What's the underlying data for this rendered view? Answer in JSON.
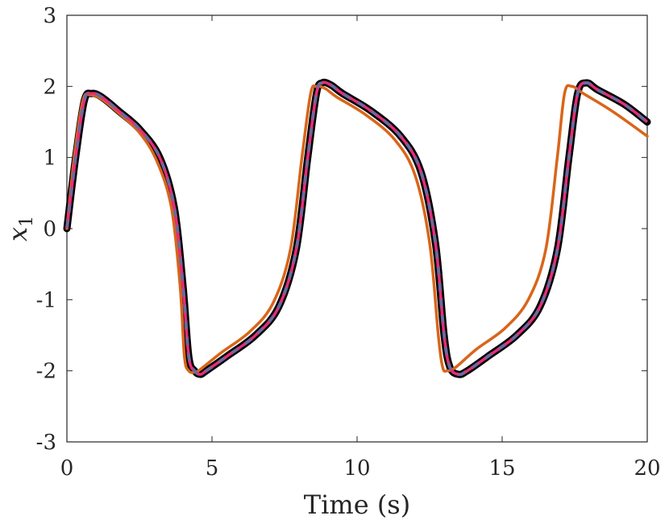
{
  "chart_data": {
    "type": "line",
    "title": "",
    "xlabel": "Time (s)",
    "ylabel": {
      "main": "x",
      "sub": "1"
    },
    "xlim": [
      0,
      20
    ],
    "ylim": [
      -3,
      3
    ],
    "xticks": [
      "0",
      "5",
      "10",
      "15",
      "20"
    ],
    "yticks": [
      "3",
      "2",
      "1",
      "0",
      "-1",
      "-2",
      "-3"
    ],
    "grid": false,
    "legend": "none",
    "series": [
      {
        "color": "#000000",
        "style": "solid-thick",
        "x": [
          0,
          0.3,
          0.6,
          0.85,
          1.2,
          1.8,
          2.5,
          3.2,
          3.7,
          4.0,
          4.2,
          4.4,
          4.6,
          4.8,
          5.5,
          6.5,
          7.3,
          7.9,
          8.3,
          8.6,
          8.8,
          9.1,
          9.5,
          10.5,
          11.5,
          12.2,
          12.7,
          13.0,
          13.2,
          13.5,
          13.8,
          14.5,
          15.5,
          16.3,
          16.9,
          17.3,
          17.6,
          17.9,
          18.3,
          19.2,
          20.0
        ],
        "y": [
          0,
          1.0,
          1.8,
          1.9,
          1.85,
          1.65,
          1.4,
          1.0,
          0.3,
          -0.8,
          -1.8,
          -2.0,
          -2.05,
          -2.0,
          -1.8,
          -1.5,
          -1.1,
          -0.3,
          1.0,
          1.9,
          2.05,
          2.02,
          1.9,
          1.65,
          1.3,
          0.8,
          -0.2,
          -1.5,
          -1.95,
          -2.05,
          -2.0,
          -1.8,
          -1.5,
          -1.1,
          -0.3,
          1.0,
          1.9,
          2.05,
          1.95,
          1.75,
          1.5
        ]
      },
      {
        "color": "#6a6aa0",
        "style": "dashed",
        "x": [
          0,
          0.3,
          0.6,
          0.85,
          1.2,
          1.8,
          2.5,
          3.2,
          3.7,
          4.0,
          4.2,
          4.4,
          4.6,
          4.8,
          5.5,
          6.5,
          7.3,
          7.9,
          8.3,
          8.6,
          8.8,
          9.1,
          9.5,
          10.5,
          11.5,
          12.2,
          12.7,
          13.0,
          13.2,
          13.5,
          13.8,
          14.5,
          15.5,
          16.3,
          16.9,
          17.3,
          17.6,
          17.9,
          18.3,
          19.2,
          20.0
        ],
        "y": [
          0,
          1.0,
          1.8,
          1.9,
          1.85,
          1.65,
          1.4,
          1.0,
          0.3,
          -0.8,
          -1.8,
          -2.0,
          -2.05,
          -2.0,
          -1.8,
          -1.5,
          -1.1,
          -0.3,
          1.0,
          1.9,
          2.05,
          2.02,
          1.9,
          1.65,
          1.3,
          0.8,
          -0.2,
          -1.5,
          -1.95,
          -2.05,
          -2.0,
          -1.8,
          -1.5,
          -1.1,
          -0.3,
          1.0,
          1.9,
          2.05,
          1.95,
          1.75,
          1.5
        ]
      },
      {
        "color": "#e0307a",
        "style": "dashed-offset",
        "x": [
          0,
          0.3,
          0.6,
          0.85,
          1.2,
          1.8,
          2.5,
          3.2,
          3.7,
          4.0,
          4.2,
          4.4,
          4.6,
          4.8,
          5.5,
          6.5,
          7.3,
          7.9,
          8.3,
          8.6,
          8.8,
          9.1,
          9.5,
          10.5,
          11.5,
          12.2,
          12.7,
          13.0,
          13.2,
          13.5,
          13.8,
          14.5,
          15.5,
          16.3,
          16.9,
          17.3,
          17.6,
          17.9,
          18.3,
          19.2,
          20.0
        ],
        "y": [
          0,
          1.0,
          1.8,
          1.9,
          1.85,
          1.65,
          1.4,
          1.0,
          0.3,
          -0.8,
          -1.8,
          -2.0,
          -2.05,
          -2.0,
          -1.8,
          -1.5,
          -1.1,
          -0.3,
          1.0,
          1.9,
          2.05,
          2.02,
          1.9,
          1.65,
          1.3,
          0.8,
          -0.2,
          -1.5,
          -1.95,
          -2.05,
          -2.0,
          -1.8,
          -1.5,
          -1.1,
          -0.3,
          1.0,
          1.9,
          2.05,
          1.95,
          1.75,
          1.5
        ]
      },
      {
        "color": "#d9651a",
        "style": "solid",
        "x": [
          0,
          0.25,
          0.55,
          0.8,
          1.2,
          1.8,
          2.5,
          3.1,
          3.6,
          3.9,
          4.05,
          4.2,
          4.4,
          4.6,
          5.3,
          6.3,
          7.1,
          7.7,
          8.1,
          8.4,
          8.6,
          8.9,
          9.3,
          10.3,
          11.3,
          12.0,
          12.5,
          12.8,
          12.95,
          13.1,
          13.4,
          14.1,
          15.1,
          15.9,
          16.5,
          16.9,
          17.15,
          17.4,
          17.8,
          18.8,
          20.0
        ],
        "y": [
          0,
          1.0,
          1.8,
          1.88,
          1.82,
          1.62,
          1.35,
          0.95,
          0.3,
          -0.8,
          -1.8,
          -2.0,
          -2.02,
          -1.98,
          -1.75,
          -1.45,
          -1.05,
          -0.3,
          1.0,
          1.9,
          2.0,
          1.97,
          1.85,
          1.6,
          1.25,
          0.75,
          -0.2,
          -1.5,
          -1.95,
          -2.0,
          -1.95,
          -1.7,
          -1.4,
          -1.0,
          -0.3,
          1.0,
          1.9,
          2.0,
          1.9,
          1.65,
          1.3
        ]
      }
    ]
  }
}
